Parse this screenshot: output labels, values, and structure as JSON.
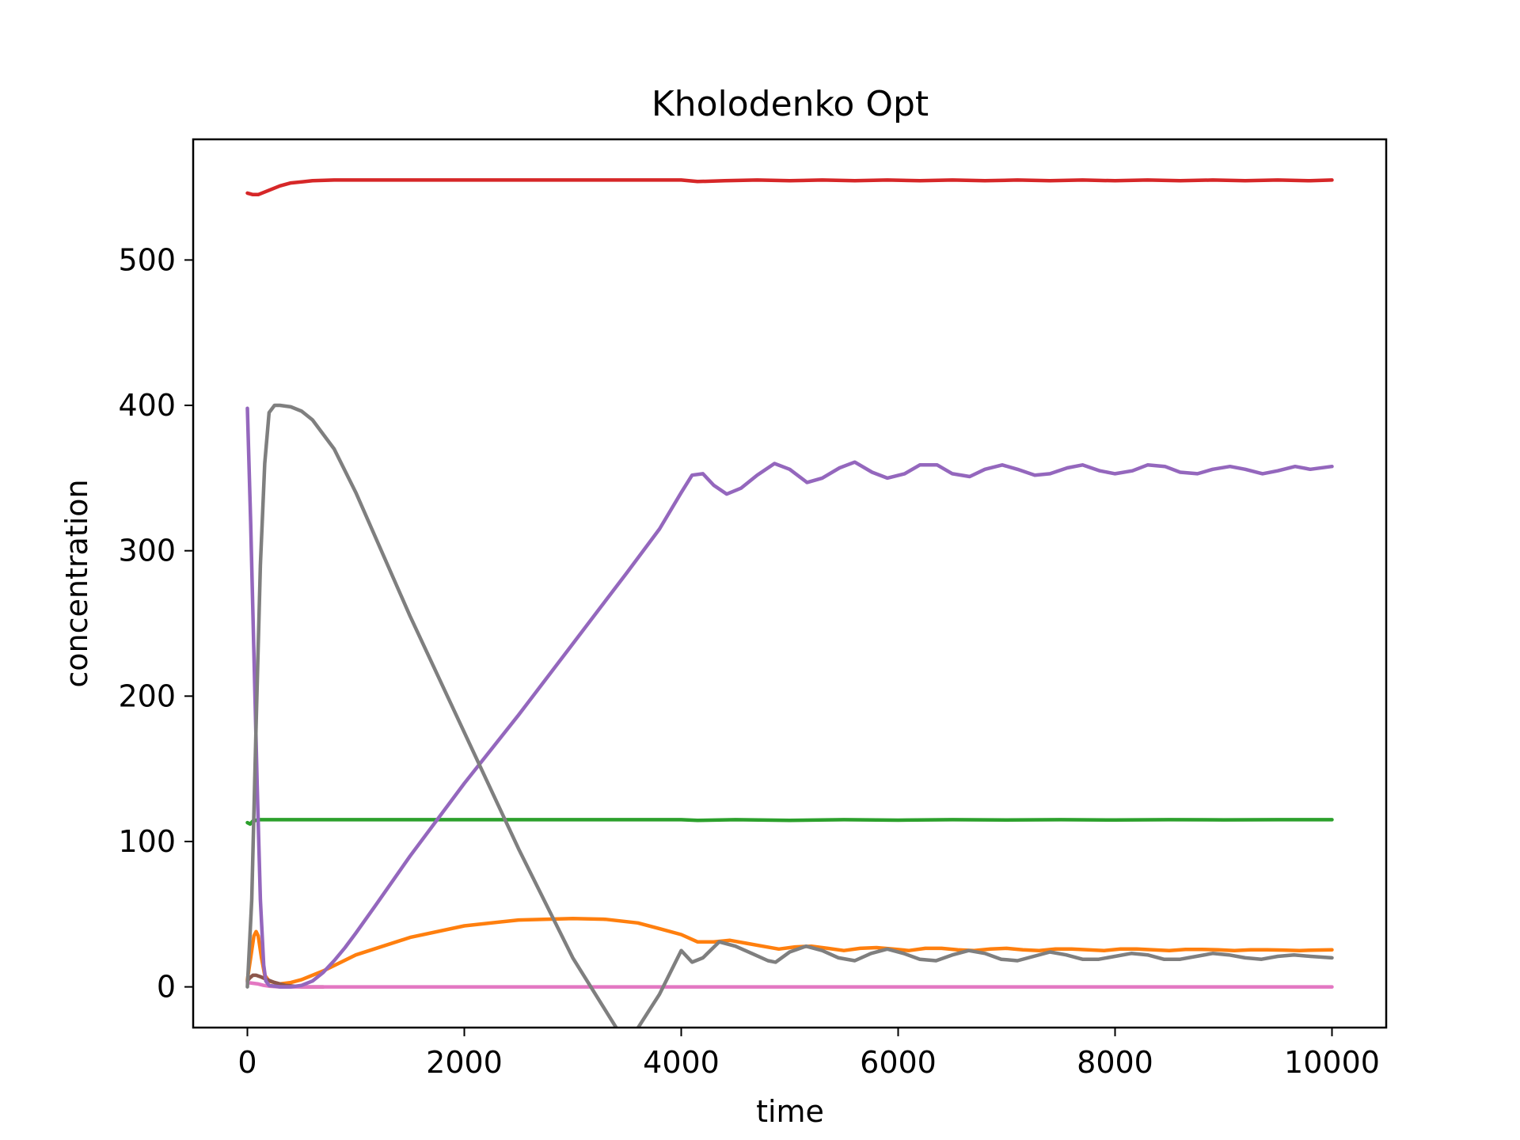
{
  "chart_data": {
    "type": "line",
    "title": "Kholodenko Opt",
    "xlabel": "time",
    "ylabel": "concentration",
    "xlim": [
      -500,
      10500
    ],
    "ylim": [
      -28,
      583
    ],
    "xticks": [
      0,
      2000,
      4000,
      6000,
      8000,
      10000
    ],
    "xtick_labels": [
      "0",
      "2000",
      "4000",
      "6000",
      "8000",
      "10000"
    ],
    "yticks": [
      0,
      100,
      200,
      300,
      400,
      500
    ],
    "ytick_labels": [
      "0",
      "100",
      "200",
      "300",
      "400",
      "500"
    ],
    "grid": false,
    "legend": "none",
    "series": [
      {
        "color": "#d62728",
        "x": [
          0,
          50,
          100,
          200,
          300,
          400,
          600,
          800,
          1000,
          2000,
          3000,
          3800,
          4000,
          4150,
          4400,
          4700,
          5000,
          5300,
          5600,
          5900,
          6200,
          6500,
          6800,
          7100,
          7400,
          7700,
          8000,
          8300,
          8600,
          8900,
          9200,
          9500,
          9800,
          10000
        ],
        "y": [
          546,
          545,
          545,
          548,
          551,
          553,
          554.5,
          555,
          555,
          555,
          555,
          555,
          555,
          554,
          554.5,
          555,
          554.5,
          555,
          554.5,
          555,
          554.5,
          555,
          554.5,
          555,
          554.5,
          555,
          554.5,
          555,
          554.5,
          555,
          554.5,
          555,
          554.5,
          555
        ]
      },
      {
        "color": "#2ca02c",
        "x": [
          0,
          25,
          50,
          100,
          200,
          500,
          1000,
          2000,
          3000,
          4000,
          4150,
          4500,
          5000,
          5500,
          6000,
          6500,
          7000,
          7500,
          8000,
          8500,
          9000,
          9500,
          10000
        ],
        "y": [
          113,
          112,
          114,
          115,
          115,
          115,
          115,
          115,
          115,
          115,
          114.5,
          115,
          114.5,
          115,
          114.7,
          115,
          114.8,
          115,
          114.8,
          115,
          114.9,
          115,
          115
        ]
      },
      {
        "color": "#ff7f0e",
        "x": [
          0,
          30,
          60,
          80,
          100,
          130,
          160,
          200,
          300,
          400,
          500,
          700,
          1000,
          1500,
          2000,
          2500,
          3000,
          3300,
          3600,
          3800,
          4000,
          4150,
          4300,
          4450,
          4600,
          4750,
          4900,
          5050,
          5200,
          5350,
          5500,
          5650,
          5800,
          5950,
          6100,
          6250,
          6400,
          6550,
          6700,
          6850,
          7000,
          7150,
          7300,
          7450,
          7600,
          7750,
          7900,
          8050,
          8200,
          8350,
          8500,
          8650,
          8800,
          8950,
          9100,
          9250,
          9400,
          9550,
          9700,
          9850,
          10000
        ],
        "y": [
          5,
          20,
          35,
          38,
          35,
          20,
          8,
          4,
          2,
          3,
          5,
          11,
          22,
          34,
          42,
          46,
          47,
          46.5,
          44,
          40,
          36,
          31,
          31,
          32,
          30,
          28,
          26,
          27.5,
          28,
          26.5,
          25,
          26.5,
          27,
          26,
          25,
          26.5,
          26.5,
          25.5,
          25,
          26,
          26.5,
          25.5,
          25,
          26,
          26,
          25.5,
          25,
          26,
          26,
          25.5,
          25,
          25.8,
          25.8,
          25.5,
          25,
          25.5,
          25.5,
          25.3,
          25,
          25.3,
          25.5
        ]
      },
      {
        "color": "#8c564b",
        "x": [
          0,
          20,
          50,
          80,
          120,
          180,
          250,
          350,
          500,
          700
        ],
        "y": [
          4,
          6,
          8,
          8,
          7,
          5,
          3,
          1,
          0,
          0
        ]
      },
      {
        "color": "#e377c2",
        "x": [
          0,
          50,
          100,
          150,
          200,
          300,
          500,
          1000,
          2000,
          3000,
          4000,
          5000,
          6000,
          7000,
          8000,
          9000,
          10000
        ],
        "y": [
          3,
          2.5,
          2,
          1,
          0.5,
          0,
          0,
          0,
          0,
          0,
          0,
          0,
          0,
          0,
          0,
          0,
          0
        ]
      },
      {
        "color": "#9467bd",
        "x": [
          0,
          30,
          60,
          90,
          120,
          150,
          170,
          200,
          300,
          400,
          500,
          600,
          700,
          800,
          900,
          1000,
          1200,
          1500,
          2000,
          2500,
          3000,
          3500,
          3800,
          4000,
          4100,
          4200,
          4300,
          4420,
          4550,
          4700,
          4860,
          5000,
          5160,
          5300,
          5460,
          5600,
          5760,
          5900,
          6060,
          6200,
          6360,
          6500,
          6660,
          6800,
          6960,
          7100,
          7260,
          7400,
          7560,
          7700,
          7860,
          8000,
          8160,
          8300,
          8460,
          8600,
          8760,
          8900,
          9060,
          9200,
          9360,
          9500,
          9660,
          9800,
          10000
        ],
        "y": [
          398,
          320,
          230,
          140,
          60,
          15,
          4,
          1,
          0,
          0,
          1,
          4,
          10,
          18,
          27,
          37,
          58,
          90,
          140,
          187,
          236,
          285,
          315,
          340,
          352,
          353,
          345,
          339,
          343,
          352,
          360,
          356,
          347,
          350,
          357,
          361,
          354,
          350,
          353,
          359,
          359,
          353,
          351,
          356,
          359,
          356,
          352,
          353,
          357,
          359,
          355,
          353,
          355,
          359,
          358,
          354,
          353,
          356,
          358,
          356,
          353,
          355,
          358,
          356,
          358
        ]
      },
      {
        "color": "#7f7f7f",
        "x": [
          0,
          40,
          80,
          120,
          160,
          200,
          250,
          300,
          400,
          500,
          600,
          800,
          1000,
          1500,
          2000,
          2500,
          3000,
          3500,
          3800,
          4000,
          4100,
          4200,
          4350,
          4500,
          4650,
          4800,
          4870,
          5000,
          5150,
          5300,
          5450,
          5600,
          5750,
          5900,
          6050,
          6200,
          6350,
          6500,
          6650,
          6800,
          6950,
          7100,
          7250,
          7400,
          7550,
          7700,
          7850,
          8000,
          8150,
          8300,
          8450,
          8600,
          8750,
          8900,
          9050,
          9200,
          9350,
          9500,
          9650,
          9800,
          10000
        ],
        "y": [
          0,
          60,
          180,
          290,
          360,
          395,
          400,
          400,
          399,
          396,
          390,
          370,
          340,
          255,
          175,
          95,
          20,
          -40,
          -5,
          25,
          17,
          20,
          31,
          28,
          23,
          18,
          17,
          24,
          28,
          25,
          20,
          18,
          23,
          26,
          23,
          19,
          18,
          22,
          25,
          23,
          19,
          18,
          21,
          24,
          22,
          19,
          19,
          21,
          23,
          22,
          19,
          19,
          21,
          23,
          22,
          20,
          19,
          21,
          22,
          21,
          20
        ]
      }
    ]
  }
}
